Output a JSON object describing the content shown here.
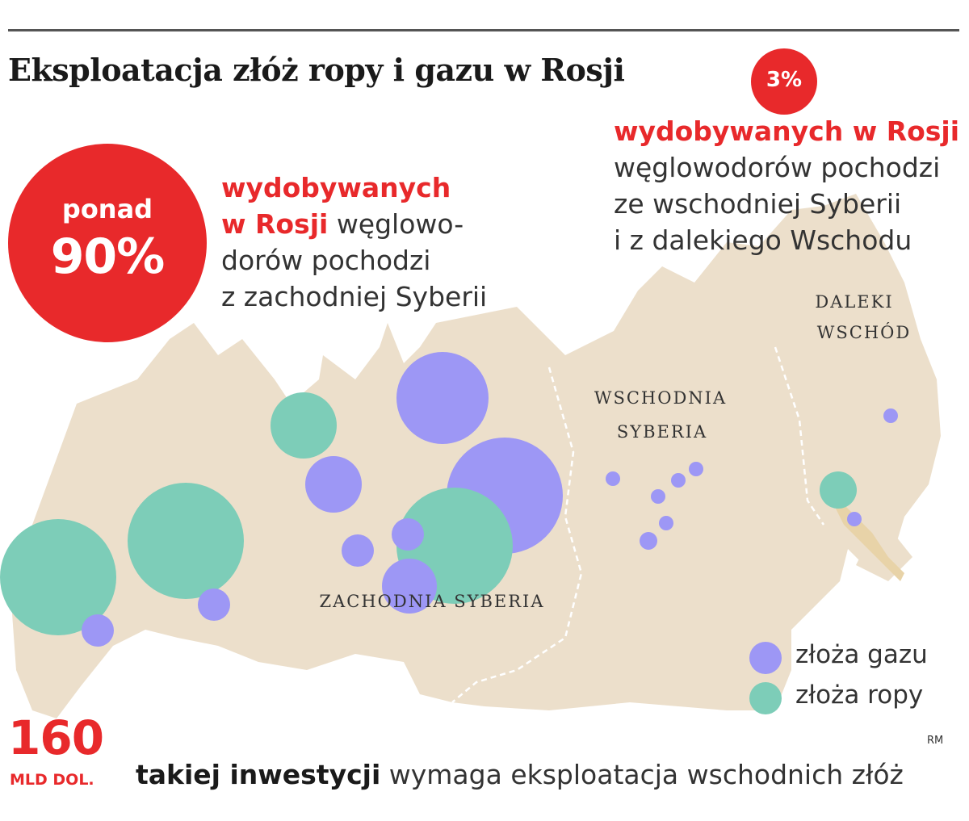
{
  "title": "Eksploatacja złóż ropy i gazu w Rosji",
  "west_callout": {
    "prefix": "ponad",
    "percent": "90%",
    "text_red_1": "wydobywanych",
    "text_red_2": "w Rosji",
    "text_1": " węglowo-",
    "text_2": "dorów pochodzi",
    "text_3": "z zachodniej Syberii"
  },
  "east_callout": {
    "percent": "3%",
    "text_red": "wydobywanych w Rosji",
    "text_1": "węglowodorów pochodzi",
    "text_2": "ze wschodniej Syberii",
    "text_3": "i z dalekiego Wschodu"
  },
  "regions": {
    "daleki_1": "DALEKI",
    "daleki_2": "WSCHÓD",
    "wschodnia_1": "WSCHODNIA",
    "wschodnia_2": "SYBERIA",
    "zachodnia": "ZACHODNIA SYBERIA"
  },
  "legend": {
    "gas": "złoża gazu",
    "oil": "złoża ropy"
  },
  "colors": {
    "gas": "#9d97f5",
    "oil": "#7dcdb8",
    "land": "#ecdfcb",
    "accent": "#e8292b"
  },
  "footer": {
    "amount": "160",
    "unit": "MLD DOL.",
    "text_bold": "takiej inwestycji",
    "text": " wymaga eksploatacja wschodnich złóż"
  },
  "credit": "RM"
}
